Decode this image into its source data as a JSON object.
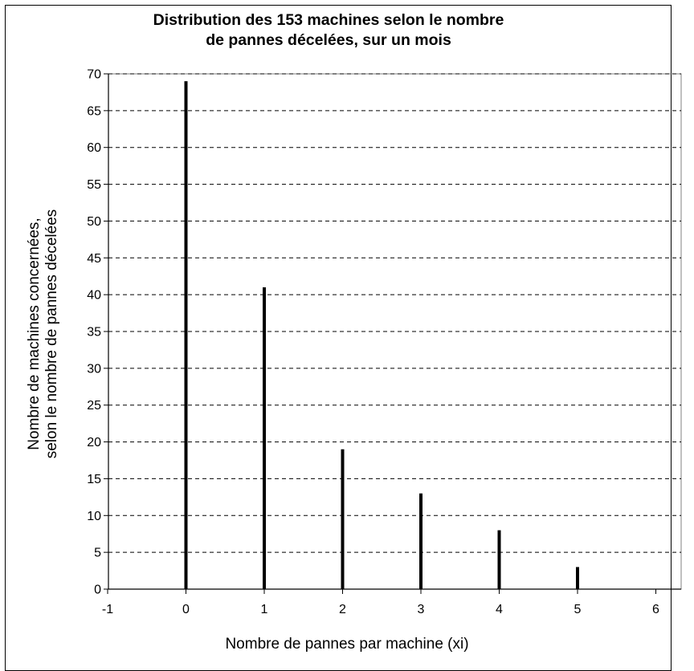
{
  "chart_data": {
    "type": "bar",
    "title_lines": [
      "Distribution des 153 machines selon le nombre",
      "de pannes décelées, sur un mois"
    ],
    "ylabel_lines": [
      "Nombre de machines concernées,",
      "selon le nombre de pannes décelées"
    ],
    "xlabel": "Nombre de pannes par machine (xi)",
    "x": [
      0,
      1,
      2,
      3,
      4,
      5
    ],
    "values": [
      69,
      41,
      19,
      13,
      8,
      3
    ],
    "xlim": [
      -1,
      6
    ],
    "ylim": [
      0,
      70
    ],
    "x_ticks": [
      -1,
      0,
      1,
      2,
      3,
      4,
      5,
      6
    ],
    "y_ticks": [
      0,
      5,
      10,
      15,
      20,
      25,
      30,
      35,
      40,
      45,
      50,
      55,
      60,
      65,
      70
    ],
    "grid": "horizontal dashed",
    "legend": "none",
    "bar_color": "#000000"
  }
}
